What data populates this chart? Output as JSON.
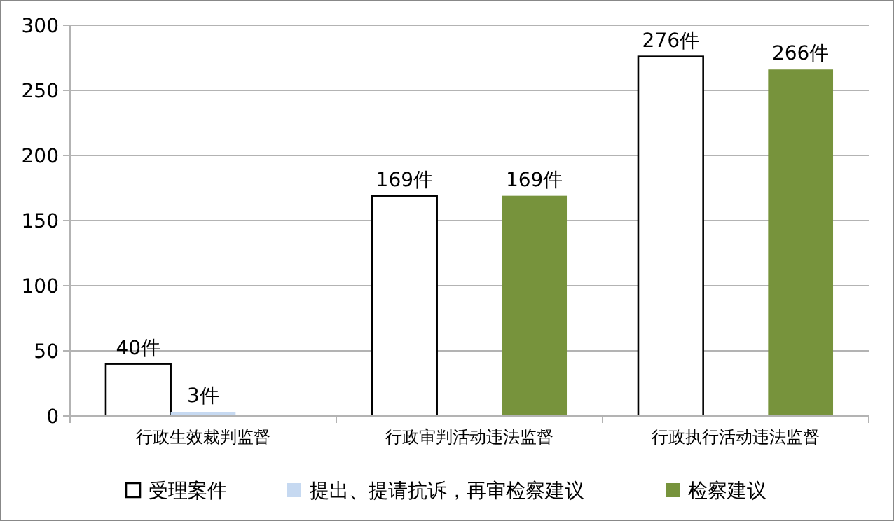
{
  "chart_data": {
    "type": "bar",
    "categories": [
      "行政生效裁判监督",
      "行政审判活动违法监督",
      "行政执行活动违法监督"
    ],
    "series": [
      {
        "name": "受理案件",
        "color": "#ffffff",
        "values": [
          40,
          169,
          276
        ],
        "value_labels": [
          "40件",
          "169件",
          "276件"
        ]
      },
      {
        "name": "提出、提请抗诉，再审检察建议",
        "color": "#c6d9f1",
        "values": [
          3,
          null,
          null
        ],
        "value_labels": [
          "3件",
          null,
          null
        ]
      },
      {
        "name": "检察建议",
        "color": "#77933c",
        "values": [
          null,
          169,
          266
        ],
        "value_labels": [
          null,
          "169件",
          "266件"
        ]
      }
    ],
    "ylim": [
      0,
      300
    ],
    "yticks": [
      0,
      50,
      100,
      150,
      200,
      250,
      300
    ],
    "grid": "y",
    "legend": "bottom"
  }
}
